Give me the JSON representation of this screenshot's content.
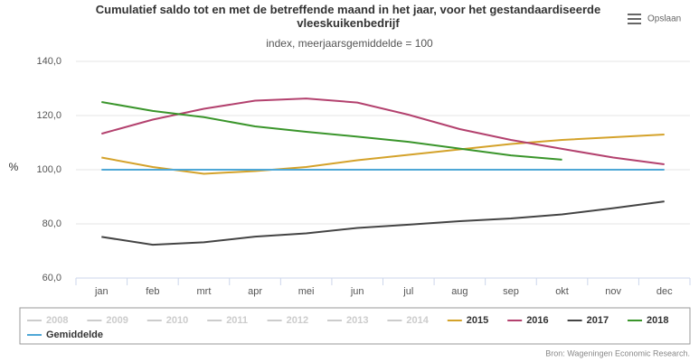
{
  "chart_data": {
    "type": "line",
    "title": "Cumulatief saldo tot en met de betreffende maand in het jaar, voor het gestandaardiseerde vleeskuikenbedrijf",
    "subtitle": "index, meerjaarsgemiddelde = 100",
    "y_label": "%",
    "export_label": "Opslaan",
    "credits": "Bron: Wageningen Economic Research.",
    "categories": [
      "jan",
      "feb",
      "mrt",
      "apr",
      "mei",
      "jun",
      "jul",
      "aug",
      "sep",
      "okt",
      "nov",
      "dec"
    ],
    "ylim": [
      60,
      140
    ],
    "yticks": [
      {
        "value": 60,
        "label": "60,0"
      },
      {
        "value": 80,
        "label": "80,0"
      },
      {
        "value": 100,
        "label": "100,0"
      },
      {
        "value": 120,
        "label": "120,0"
      },
      {
        "value": 140,
        "label": "140,0"
      }
    ],
    "grid": true,
    "legend_position": "bottom",
    "hidden_series": [
      "2008",
      "2009",
      "2010",
      "2011",
      "2012",
      "2013",
      "2014"
    ],
    "hidden_color": "#cccccc",
    "series": [
      {
        "name": "2015",
        "color": "#d4a22a",
        "values": [
          104.5,
          101,
          98.5,
          99.5,
          101,
          103.5,
          105.5,
          107.5,
          109.5,
          111,
          112,
          113
        ]
      },
      {
        "name": "2016",
        "color": "#b3416e",
        "values": [
          113.3,
          118.5,
          122.5,
          125.5,
          126.3,
          124.8,
          120.3,
          115,
          111,
          107.7,
          104.5,
          102
        ]
      },
      {
        "name": "2017",
        "color": "#444444",
        "values": [
          75.2,
          72.3,
          73.2,
          75.3,
          76.5,
          78.5,
          79.7,
          81,
          82,
          83.5,
          85.8,
          88.3
        ]
      },
      {
        "name": "2018",
        "color": "#3a952b",
        "values": [
          125,
          121.7,
          119.4,
          116,
          114,
          112.2,
          110.3,
          107.8,
          105.3,
          103.7,
          null,
          null
        ]
      },
      {
        "name": "Gemiddelde",
        "color": "#4ea7d6",
        "values": [
          100,
          100,
          100,
          100,
          100,
          100,
          100,
          100,
          100,
          100,
          100,
          100
        ]
      }
    ]
  }
}
